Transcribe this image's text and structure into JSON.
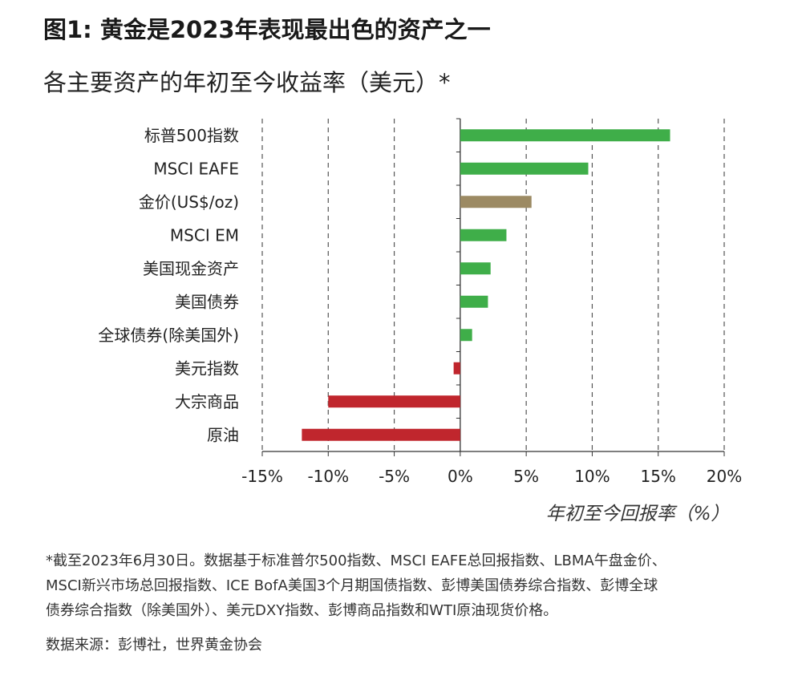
{
  "title": "图1: 黄金是2023年表现最出色的资产之一",
  "subtitle": "各主要资产的年初至今收益率（美元）*",
  "chart_data": {
    "type": "bar",
    "orientation": "horizontal",
    "xlabel": "年初至今回报率（%）",
    "xlim": [
      -15,
      20
    ],
    "xticks": [
      -15,
      -10,
      -5,
      0,
      5,
      10,
      15,
      20
    ],
    "xtick_labels": [
      "-15%",
      "-10%",
      "-5%",
      "0%",
      "5%",
      "10%",
      "15%",
      "20%"
    ],
    "grid": "vertical dashed",
    "categories": [
      "标普500指数",
      "MSCI EAFE",
      "金价(US$/oz)",
      "MSCI EM",
      "美国现金资产",
      "美国债券",
      "全球债券(除美国外)",
      "美元指数",
      "大宗商品",
      "原油"
    ],
    "values": [
      15.9,
      9.7,
      5.4,
      3.5,
      2.3,
      2.1,
      0.9,
      -0.5,
      -10.0,
      -12.0
    ],
    "colors": [
      "#3fae49",
      "#3fae49",
      "#9c8a63",
      "#3fae49",
      "#3fae49",
      "#3fae49",
      "#3fae49",
      "#c0262d",
      "#c0262d",
      "#c0262d"
    ]
  },
  "notes": [
    "*截至2023年6月30日。数据基于标准普尔500指数、MSCI EAFE总回报指数、LBMA午盘金价、",
    "MSCI新兴市场总回报指数、ICE BofA美国3个月期国债指数、彭博美国债券综合指数、彭博全球",
    "债券综合指数（除美国外）、美元DXY指数、彭博商品指数和WTI原油现货价格。"
  ],
  "source": "数据来源：彭博社，世界黄金协会"
}
